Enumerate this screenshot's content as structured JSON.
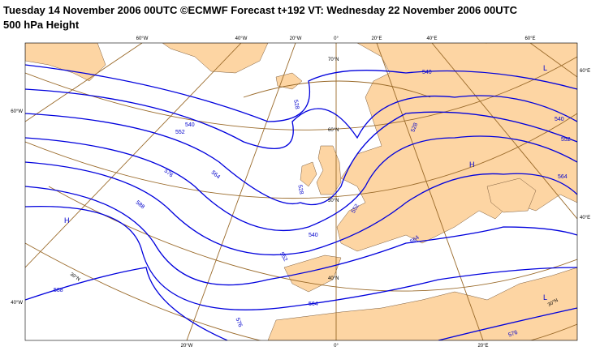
{
  "header": {
    "title": "Tuesday 14 November 2006 00UTC ©ECMWF Forecast t+192 VT: Wednesday 22 November 2006 00UTC",
    "subtitle": "500 hPa Height"
  },
  "map": {
    "top_labels": [
      "60°W",
      "40°W",
      "20°W",
      "0°",
      "20°E",
      "40°E",
      "60°E"
    ],
    "bottom_labels": [
      "20°W",
      "0°",
      "20°E"
    ],
    "left_labels": [
      "60°W",
      "40°W"
    ],
    "right_labels": [
      "60°E",
      "40°E"
    ],
    "lat_labels": [
      "70°N",
      "60°N",
      "50°N",
      "40°N",
      "30°N",
      "30°N"
    ],
    "contour_labels": [
      "540",
      "528",
      "540",
      "552",
      "576",
      "564",
      "588",
      "528",
      "552",
      "540",
      "564",
      "552",
      "564",
      "576",
      "588",
      "540",
      "552",
      "564",
      "576",
      "528"
    ],
    "centers": [
      "H",
      "H",
      "L",
      "L"
    ]
  }
}
